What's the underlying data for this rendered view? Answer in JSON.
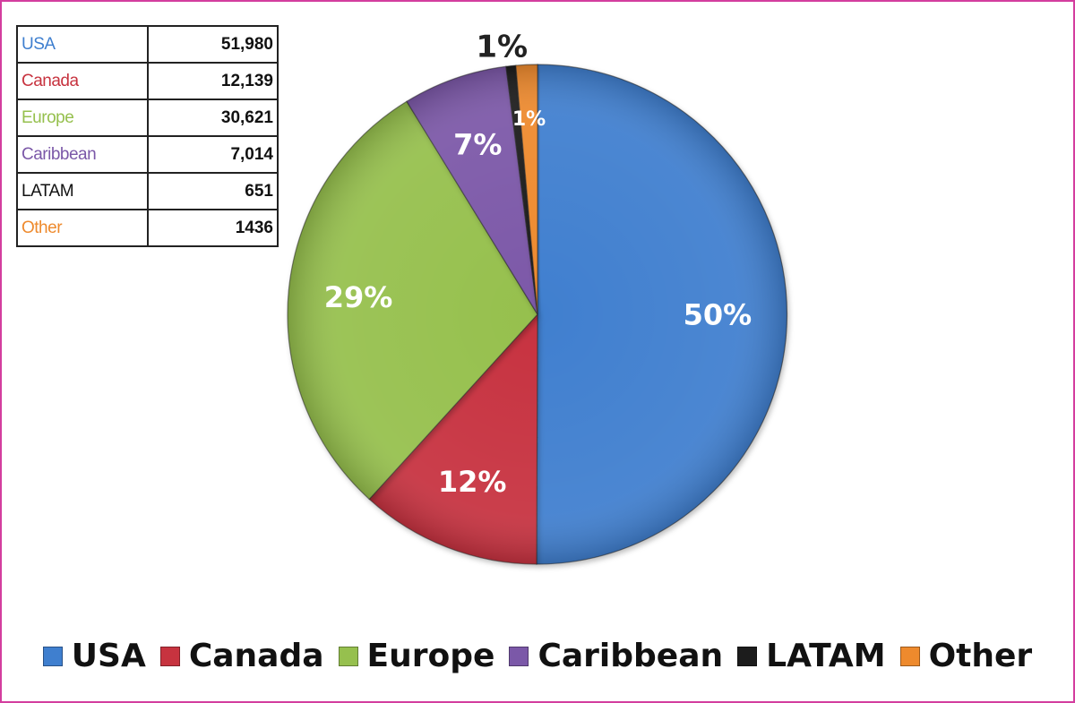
{
  "chart_data": {
    "type": "pie",
    "categories": [
      "USA",
      "Canada",
      "Europe",
      "Caribbean",
      "LATAM",
      "Other"
    ],
    "values": [
      51980,
      12139,
      30621,
      7014,
      651,
      1436
    ],
    "value_labels": [
      "51,980",
      "12,139",
      "30,621",
      "7,014",
      "651",
      "1436"
    ],
    "percent_labels": [
      "50%",
      "12%",
      "29%",
      "7%",
      "1%",
      "1%"
    ],
    "colors": [
      "#3f7fcf",
      "#c7333f",
      "#96c04e",
      "#7b58a8",
      "#1c1c1c",
      "#ee8a2d"
    ],
    "legend": "bottom"
  }
}
